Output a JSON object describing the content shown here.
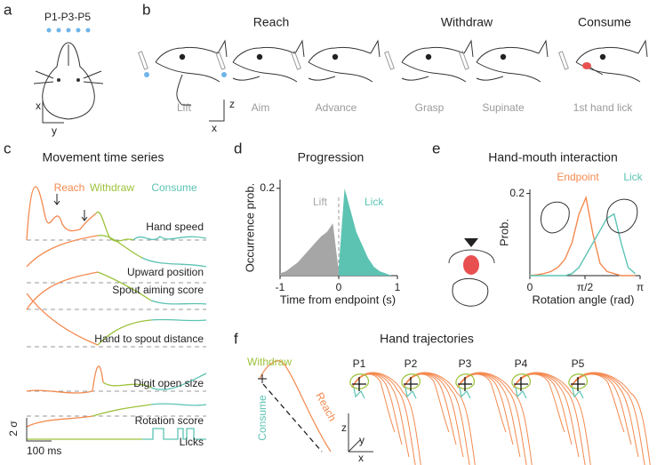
{
  "panel_labels": [
    "a",
    "b",
    "c",
    "d",
    "e",
    "f"
  ],
  "a": {
    "title": "P1-P3-P5",
    "axis_x": "x",
    "axis_y": "y"
  },
  "b": {
    "phases": [
      "Reach",
      "Withdraw",
      "Consume"
    ],
    "steps": [
      "Lift",
      "Aim",
      "Advance",
      "Grasp",
      "Supinate",
      "1st hand lick"
    ],
    "axis_z": "z",
    "axis_x": "x"
  },
  "c": {
    "title": "Movement time series",
    "phases": [
      "Reach",
      "Withdraw",
      "Consume"
    ],
    "traces": [
      "Hand speed",
      "Upward position",
      "Spout aiming score",
      "Hand to spout distance",
      "Digit open size",
      "Rotation score",
      "Licks"
    ],
    "scale_y": "2 σ",
    "scale_x": "100 ms"
  },
  "f": {
    "title": "Hand trajectories",
    "labels": [
      "Withdraw",
      "Reach",
      "Consume"
    ],
    "sessions": [
      "P1",
      "P2",
      "P3",
      "P4",
      "P5"
    ],
    "axes": [
      "z",
      "y",
      "x"
    ]
  },
  "chart_data": [
    {
      "type": "area",
      "title": "Progression",
      "xlabel": "Time from endpoint (s)",
      "ylabel": "Occurrence prob.",
      "x": [
        -1,
        -0.9,
        -0.8,
        -0.7,
        -0.6,
        -0.5,
        -0.4,
        -0.3,
        -0.2,
        -0.1,
        0,
        0.1,
        0.2,
        0.3,
        0.4,
        0.5,
        0.6,
        0.7,
        0.8,
        0.9,
        1
      ],
      "series": [
        {
          "name": "Lift",
          "color": "#a6a6a6",
          "values": [
            0.005,
            0.01,
            0.02,
            0.03,
            0.045,
            0.06,
            0.075,
            0.09,
            0.1,
            0.12,
            0.01,
            null,
            null,
            null,
            null,
            null,
            null,
            null,
            null,
            null,
            null
          ]
        },
        {
          "name": "Lick",
          "color": "#5cc3b3",
          "values": [
            null,
            null,
            null,
            null,
            null,
            null,
            null,
            null,
            null,
            null,
            0.02,
            0.2,
            0.15,
            0.1,
            0.07,
            0.04,
            0.02,
            0.01,
            0.005,
            0,
            0
          ]
        }
      ],
      "xlim": [
        -1,
        1
      ],
      "xticks": [
        -1,
        0,
        1
      ],
      "ylim": [
        0,
        0.22
      ],
      "yticks": [
        0.2
      ]
    },
    {
      "type": "line",
      "title": "Hand-mouth interaction",
      "xlabel": "Rotation angle (rad)",
      "ylabel": "Prob.",
      "x": [
        0,
        0.2,
        0.4,
        0.6,
        0.8,
        1.0,
        1.2,
        1.4,
        1.6,
        1.8,
        2.0,
        2.2,
        2.4,
        2.6,
        2.8,
        3.0
      ],
      "series": [
        {
          "name": "Endpoint",
          "color": "#f4894f",
          "values": [
            0,
            0.002,
            0.005,
            0.01,
            0.02,
            0.04,
            0.08,
            0.15,
            0.19,
            0.1,
            0.03,
            0.01,
            0.005,
            0,
            0,
            0
          ]
        },
        {
          "name": "Lick",
          "color": "#5cc3b3",
          "values": [
            0,
            0,
            0,
            0,
            0,
            0,
            0.005,
            0.02,
            0.05,
            0.08,
            0.11,
            0.14,
            0.15,
            0.08,
            0.02,
            0.005
          ]
        }
      ],
      "xlim": [
        0,
        3.1416
      ],
      "xticks": [
        0,
        {
          "value": 1.5708,
          "label": "π/2"
        },
        {
          "value": 3.1416,
          "label": "π"
        }
      ],
      "ylim": [
        0,
        0.21
      ],
      "yticks": [
        0.2
      ]
    }
  ]
}
